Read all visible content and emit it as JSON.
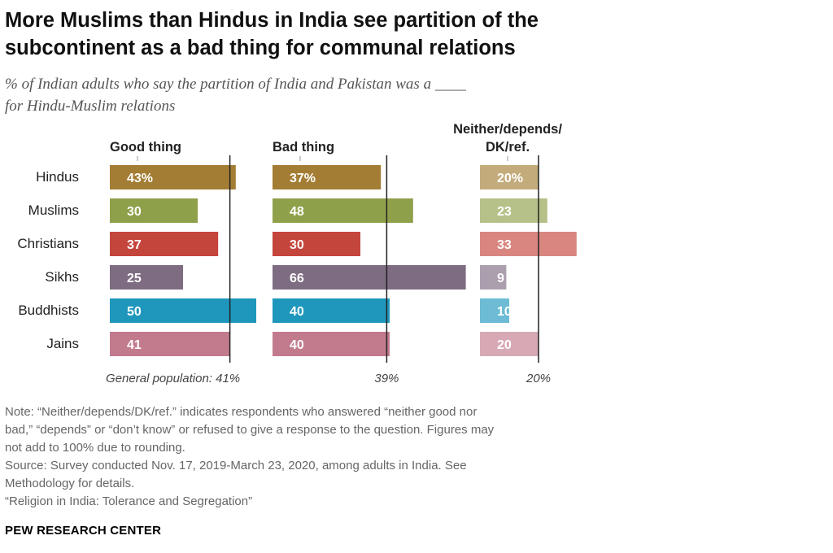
{
  "title_lines": [
    "More Muslims than Hindus in India see partition of the",
    "subcontinent as a bad thing for communal relations"
  ],
  "subtitle_lines": [
    "% of Indian adults who say the partition of India and Pakistan was a ____",
    "for Hindu-Muslim relations"
  ],
  "chart_data": {
    "type": "bar",
    "orientation": "horizontal",
    "layout": "small-multiples",
    "categories": [
      "Hindus",
      "Muslims",
      "Christians",
      "Sikhs",
      "Buddhists",
      "Jains"
    ],
    "category_colors": [
      "#a47d34",
      "#8ea04a",
      "#c4453c",
      "#7e6c82",
      "#1f97bd",
      "#c27b8d"
    ],
    "series": [
      {
        "name": "Good thing",
        "values": [
          43,
          30,
          37,
          25,
          50,
          41
        ],
        "labels": [
          "43%",
          "30",
          "37",
          "25",
          "50",
          "41"
        ],
        "reference_value": 41,
        "reference_label": "General population: 41%"
      },
      {
        "name": "Bad thing",
        "values": [
          37,
          48,
          30,
          66,
          40,
          40
        ],
        "labels": [
          "37%",
          "48",
          "30",
          "66",
          "40",
          "40"
        ],
        "reference_value": 39,
        "reference_label": "39%"
      },
      {
        "name_lines": [
          "Neither/depends/",
          "DK/ref."
        ],
        "values": [
          20,
          23,
          33,
          9,
          10,
          20
        ],
        "labels": [
          "20%",
          "23",
          "33",
          "9",
          "10",
          "20"
        ],
        "reference_value": 20,
        "reference_label": "20%"
      }
    ],
    "xlim": [
      0,
      100
    ]
  },
  "notes": [
    "Note: “Neither/depends/DK/ref.” indicates respondents who answered “neither good nor",
    "bad,” “depends” or “don’t know” or refused to give a response to the question. Figures may",
    "not add to 100% due to rounding.",
    "Source: Survey conducted Nov. 17, 2019-March 23, 2020, among adults in India. See",
    "Methodology for details.",
    "“Religion in India: Tolerance and Segregation”"
  ],
  "credit": "PEW RESEARCH CENTER"
}
